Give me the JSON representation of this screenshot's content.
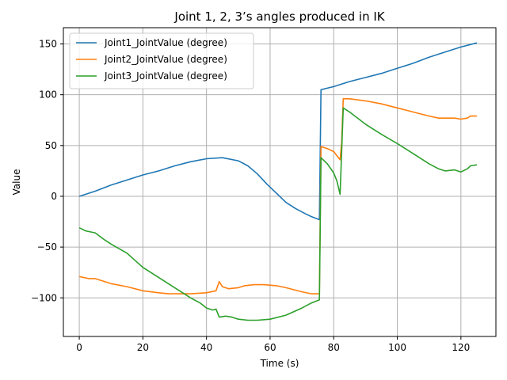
{
  "chart_data": {
    "type": "line",
    "title": "Joint 1, 2, 3’s angles produced in IK",
    "xlabel": "Time (s)",
    "ylabel": "Value",
    "xlim": [
      -5,
      131
    ],
    "ylim": [
      -138,
      166
    ],
    "xticks": [
      0,
      20,
      40,
      60,
      80,
      100,
      120
    ],
    "yticks": [
      -100,
      -50,
      0,
      50,
      100,
      150
    ],
    "grid": true,
    "legend_position": "top-left",
    "series": [
      {
        "name": "Joint1_JointValue (degree)",
        "color": "#1f77b4",
        "points": [
          [
            0,
            0
          ],
          [
            5,
            5
          ],
          [
            10,
            11
          ],
          [
            15,
            16
          ],
          [
            20,
            21
          ],
          [
            25,
            25
          ],
          [
            30,
            30
          ],
          [
            35,
            34
          ],
          [
            40,
            37
          ],
          [
            45,
            38
          ],
          [
            50,
            35
          ],
          [
            53,
            30
          ],
          [
            56,
            22
          ],
          [
            59,
            12
          ],
          [
            62,
            3
          ],
          [
            65,
            -6
          ],
          [
            68,
            -12
          ],
          [
            71,
            -17
          ],
          [
            73,
            -20
          ],
          [
            75.5,
            -23
          ],
          [
            76,
            105
          ],
          [
            80,
            108
          ],
          [
            85,
            113
          ],
          [
            90,
            117
          ],
          [
            95,
            121
          ],
          [
            100,
            126
          ],
          [
            105,
            131
          ],
          [
            110,
            137
          ],
          [
            115,
            142
          ],
          [
            120,
            147
          ],
          [
            125,
            151
          ]
        ]
      },
      {
        "name": "Joint2_JointValue (degree)",
        "color": "#ff7f0e",
        "points": [
          [
            0,
            -79
          ],
          [
            3,
            -81
          ],
          [
            5,
            -81
          ],
          [
            10,
            -86
          ],
          [
            15,
            -89
          ],
          [
            20,
            -93
          ],
          [
            25,
            -95
          ],
          [
            28,
            -96
          ],
          [
            30,
            -96
          ],
          [
            35,
            -96
          ],
          [
            40,
            -95
          ],
          [
            43,
            -93
          ],
          [
            44,
            -84
          ],
          [
            45,
            -89
          ],
          [
            47,
            -91
          ],
          [
            50,
            -90
          ],
          [
            52,
            -88
          ],
          [
            55,
            -87
          ],
          [
            58,
            -87
          ],
          [
            62,
            -88
          ],
          [
            65,
            -90
          ],
          [
            70,
            -94
          ],
          [
            73,
            -96
          ],
          [
            75.5,
            -96
          ],
          [
            76,
            49
          ],
          [
            78,
            47
          ],
          [
            80,
            44
          ],
          [
            82,
            36
          ],
          [
            82.5,
            53
          ],
          [
            83,
            96
          ],
          [
            85,
            96
          ],
          [
            90,
            94
          ],
          [
            95,
            91
          ],
          [
            100,
            87
          ],
          [
            105,
            83
          ],
          [
            110,
            79
          ],
          [
            113,
            77
          ],
          [
            115,
            77
          ],
          [
            118,
            77
          ],
          [
            120,
            76
          ],
          [
            122,
            77
          ],
          [
            123,
            79
          ],
          [
            125,
            79
          ]
        ]
      },
      {
        "name": "Joint3_JointValue (degree)",
        "color": "#2ca02c",
        "points": [
          [
            0,
            -31
          ],
          [
            2,
            -34
          ],
          [
            5,
            -36
          ],
          [
            8,
            -43
          ],
          [
            10,
            -47
          ],
          [
            15,
            -56
          ],
          [
            20,
            -70
          ],
          [
            25,
            -80
          ],
          [
            30,
            -90
          ],
          [
            33,
            -96
          ],
          [
            35,
            -100
          ],
          [
            38,
            -105
          ],
          [
            40,
            -110
          ],
          [
            42,
            -112
          ],
          [
            43,
            -111
          ],
          [
            44,
            -119
          ],
          [
            46,
            -118
          ],
          [
            48,
            -119
          ],
          [
            50,
            -121
          ],
          [
            53,
            -122
          ],
          [
            56,
            -122
          ],
          [
            60,
            -121
          ],
          [
            65,
            -117
          ],
          [
            70,
            -110
          ],
          [
            73,
            -105
          ],
          [
            75.5,
            -102
          ],
          [
            76,
            38
          ],
          [
            78,
            32
          ],
          [
            80,
            23
          ],
          [
            81,
            15
          ],
          [
            82,
            2
          ],
          [
            83,
            87
          ],
          [
            85,
            83
          ],
          [
            90,
            71
          ],
          [
            95,
            61
          ],
          [
            100,
            52
          ],
          [
            105,
            42
          ],
          [
            110,
            32
          ],
          [
            113,
            27
          ],
          [
            115,
            25
          ],
          [
            118,
            26
          ],
          [
            120,
            24
          ],
          [
            122,
            27
          ],
          [
            123,
            30
          ],
          [
            125,
            31
          ]
        ]
      }
    ]
  }
}
